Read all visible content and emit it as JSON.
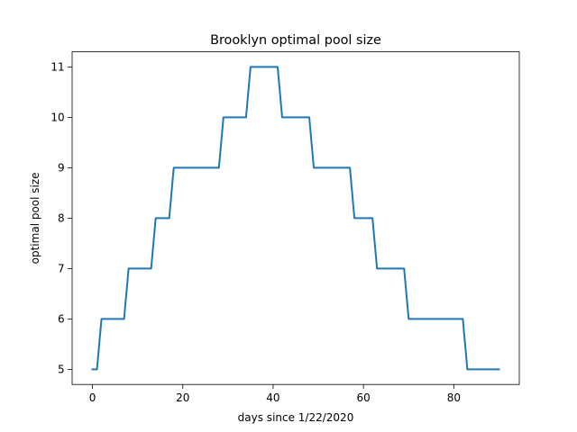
{
  "chart_data": {
    "type": "line",
    "title": "Brooklyn optimal pool size",
    "xlabel": "days since 1/22/2020",
    "ylabel": "optimal pool size",
    "xlim": [
      -4.5,
      94.5
    ],
    "ylim": [
      4.7,
      11.3
    ],
    "xticks": [
      0,
      20,
      40,
      60,
      80
    ],
    "yticks": [
      5,
      6,
      7,
      8,
      9,
      10,
      11
    ],
    "grid": false,
    "legend": "none",
    "series": [
      {
        "color": "#1f77b4",
        "x": [
          0,
          1,
          2,
          3,
          4,
          5,
          6,
          7,
          8,
          9,
          10,
          11,
          12,
          13,
          14,
          15,
          16,
          17,
          18,
          19,
          20,
          21,
          22,
          23,
          24,
          25,
          26,
          27,
          28,
          29,
          30,
          31,
          32,
          33,
          34,
          35,
          36,
          37,
          38,
          39,
          40,
          41,
          42,
          43,
          44,
          45,
          46,
          47,
          48,
          49,
          50,
          51,
          52,
          53,
          54,
          55,
          56,
          57,
          58,
          59,
          60,
          61,
          62,
          63,
          64,
          65,
          66,
          67,
          68,
          69,
          70,
          71,
          72,
          73,
          74,
          75,
          76,
          77,
          78,
          79,
          80,
          81,
          82,
          83,
          84,
          85,
          86,
          87,
          88,
          89,
          90
        ],
        "y": [
          5,
          5,
          6,
          6,
          6,
          6,
          6,
          6,
          7,
          7,
          7,
          7,
          7,
          7,
          8,
          8,
          8,
          8,
          9,
          9,
          9,
          9,
          9,
          9,
          9,
          9,
          9,
          9,
          9,
          10,
          10,
          10,
          10,
          10,
          10,
          11,
          11,
          11,
          11,
          11,
          11,
          11,
          10,
          10,
          10,
          10,
          10,
          10,
          10,
          9,
          9,
          9,
          9,
          9,
          9,
          9,
          9,
          9,
          8,
          8,
          8,
          8,
          8,
          7,
          7,
          7,
          7,
          7,
          7,
          7,
          6,
          6,
          6,
          6,
          6,
          6,
          6,
          6,
          6,
          6,
          6,
          6,
          6,
          5,
          5,
          5,
          5,
          5,
          5,
          5,
          5
        ]
      }
    ]
  }
}
